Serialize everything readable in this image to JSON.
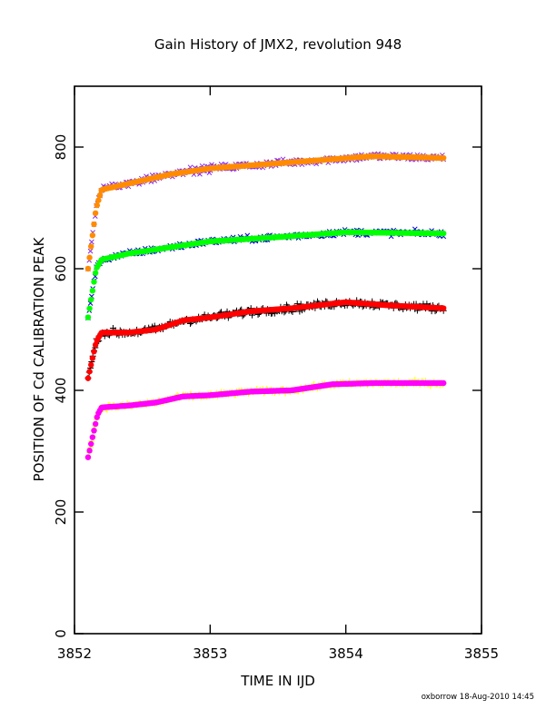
{
  "chart_data": {
    "type": "scatter",
    "title": "Gain History of JMX2, revolution 948",
    "xlabel": "TIME IN IJD",
    "ylabel": "POSITION OF Cd CALIBRATION PEAK",
    "xlim": [
      3852,
      3855
    ],
    "ylim": [
      0,
      900
    ],
    "x_ticks": [
      "3852",
      "3853",
      "3854",
      "3855"
    ],
    "y_ticks": [
      "0",
      "200",
      "400",
      "600",
      "800"
    ],
    "grid": false,
    "footer": "oxborrow 18-Aug-2010 14:45",
    "series": [
      {
        "marker": "x",
        "color": "#8a2be2",
        "curve": [
          [
            3852.1,
            600
          ],
          [
            3852.13,
            650
          ],
          [
            3852.16,
            700
          ],
          [
            3852.2,
            730
          ],
          [
            3852.3,
            735
          ],
          [
            3852.5,
            745
          ],
          [
            3852.7,
            755
          ],
          [
            3853.0,
            765
          ],
          [
            3853.3,
            770
          ],
          [
            3853.6,
            775
          ],
          [
            3853.9,
            780
          ],
          [
            3854.2,
            785
          ],
          [
            3854.72,
            782
          ]
        ],
        "scatter": 0.055
      },
      {
        "marker": "dot",
        "color": "#ff8c00",
        "curve": [
          [
            3852.1,
            600
          ],
          [
            3852.13,
            650
          ],
          [
            3852.16,
            700
          ],
          [
            3852.2,
            730
          ],
          [
            3852.3,
            735
          ],
          [
            3852.5,
            745
          ],
          [
            3852.7,
            755
          ],
          [
            3853.0,
            765
          ],
          [
            3853.3,
            770
          ],
          [
            3853.6,
            775
          ],
          [
            3853.9,
            780
          ],
          [
            3854.2,
            785
          ],
          [
            3854.72,
            782
          ]
        ],
        "scatter": 0.0
      },
      {
        "marker": "x",
        "color": "#0000cd",
        "curve": [
          [
            3852.1,
            520
          ],
          [
            3852.13,
            560
          ],
          [
            3852.16,
            600
          ],
          [
            3852.2,
            615
          ],
          [
            3852.4,
            625
          ],
          [
            3852.7,
            635
          ],
          [
            3853.0,
            645
          ],
          [
            3853.5,
            652
          ],
          [
            3854.0,
            660
          ],
          [
            3854.72,
            658
          ]
        ],
        "scatter": 0.045
      },
      {
        "marker": "dot",
        "color": "#00ff00",
        "curve": [
          [
            3852.1,
            520
          ],
          [
            3852.13,
            560
          ],
          [
            3852.16,
            600
          ],
          [
            3852.2,
            615
          ],
          [
            3852.4,
            625
          ],
          [
            3852.7,
            635
          ],
          [
            3853.0,
            645
          ],
          [
            3853.5,
            652
          ],
          [
            3854.0,
            660
          ],
          [
            3854.72,
            658
          ]
        ],
        "scatter": 0.0
      },
      {
        "marker": "+",
        "color": "#000000",
        "curve": [
          [
            3852.1,
            420
          ],
          [
            3852.13,
            450
          ],
          [
            3852.16,
            480
          ],
          [
            3852.2,
            495
          ],
          [
            3852.4,
            495
          ],
          [
            3852.6,
            500
          ],
          [
            3852.8,
            515
          ],
          [
            3853.0,
            520
          ],
          [
            3853.3,
            530
          ],
          [
            3853.6,
            535
          ],
          [
            3854.0,
            545
          ],
          [
            3854.3,
            540
          ],
          [
            3854.72,
            535
          ]
        ],
        "scatter": 0.06
      },
      {
        "marker": "dot",
        "color": "#ff0000",
        "curve": [
          [
            3852.1,
            420
          ],
          [
            3852.13,
            450
          ],
          [
            3852.16,
            480
          ],
          [
            3852.2,
            495
          ],
          [
            3852.4,
            495
          ],
          [
            3852.6,
            500
          ],
          [
            3852.8,
            515
          ],
          [
            3853.0,
            520
          ],
          [
            3853.3,
            530
          ],
          [
            3853.6,
            535
          ],
          [
            3854.0,
            545
          ],
          [
            3854.3,
            540
          ],
          [
            3854.72,
            535
          ]
        ],
        "scatter": 0.0
      },
      {
        "marker": "+",
        "color": "#ffff00",
        "curve": [
          [
            3852.1,
            290
          ],
          [
            3852.13,
            320
          ],
          [
            3852.17,
            360
          ],
          [
            3852.2,
            372
          ],
          [
            3852.4,
            375
          ],
          [
            3852.6,
            380
          ],
          [
            3852.8,
            390
          ],
          [
            3853.0,
            392
          ],
          [
            3853.3,
            398
          ],
          [
            3853.6,
            400
          ],
          [
            3853.9,
            410
          ],
          [
            3854.2,
            412
          ],
          [
            3854.72,
            412
          ]
        ],
        "scatter": 0.035
      },
      {
        "marker": "dot",
        "color": "#ff00ff",
        "curve": [
          [
            3852.1,
            290
          ],
          [
            3852.13,
            320
          ],
          [
            3852.17,
            360
          ],
          [
            3852.2,
            372
          ],
          [
            3852.4,
            375
          ],
          [
            3852.6,
            380
          ],
          [
            3852.8,
            390
          ],
          [
            3853.0,
            392
          ],
          [
            3853.3,
            398
          ],
          [
            3853.6,
            400
          ],
          [
            3853.9,
            410
          ],
          [
            3854.2,
            412
          ],
          [
            3854.72,
            412
          ]
        ],
        "scatter": 0.0
      }
    ]
  }
}
